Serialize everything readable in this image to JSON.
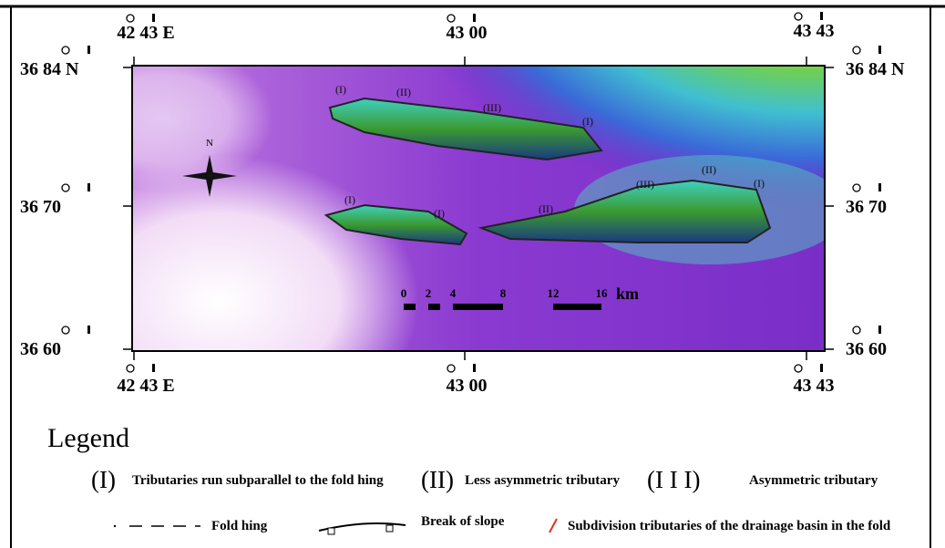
{
  "axes": {
    "top": [
      "42 43 E",
      "43 00",
      "43 43"
    ],
    "bottom": [
      "42 43 E",
      "43 00",
      "43 43"
    ],
    "left": [
      "36 84 N",
      "36 70",
      "36 60"
    ],
    "right": [
      "36 84 N",
      "36 70",
      "36 60"
    ]
  },
  "map": {
    "compass": "N",
    "fold_labels": [
      "(I)",
      "(II)",
      "(III)",
      "(I)",
      "(I)",
      "(I)",
      "(II)",
      "(III)",
      "(II)",
      "(I)"
    ],
    "scale": {
      "ticks": [
        "0",
        "2",
        "4",
        "8",
        "12",
        "16"
      ],
      "unit": "km"
    }
  },
  "legend": {
    "title": "Legend",
    "items": [
      {
        "symbol": "(I)",
        "label": "Tributaries run subparallel  to the fold hing"
      },
      {
        "symbol": "(II)",
        "label": "Less asymmetric tributary"
      },
      {
        "symbol": "(I I I)",
        "label": "Asymmetric tributary"
      },
      {
        "label": "Fold hing"
      },
      {
        "label": "Break of slope"
      },
      {
        "label": "Subdivision tributaries of the drainage basin in the fold"
      }
    ]
  }
}
